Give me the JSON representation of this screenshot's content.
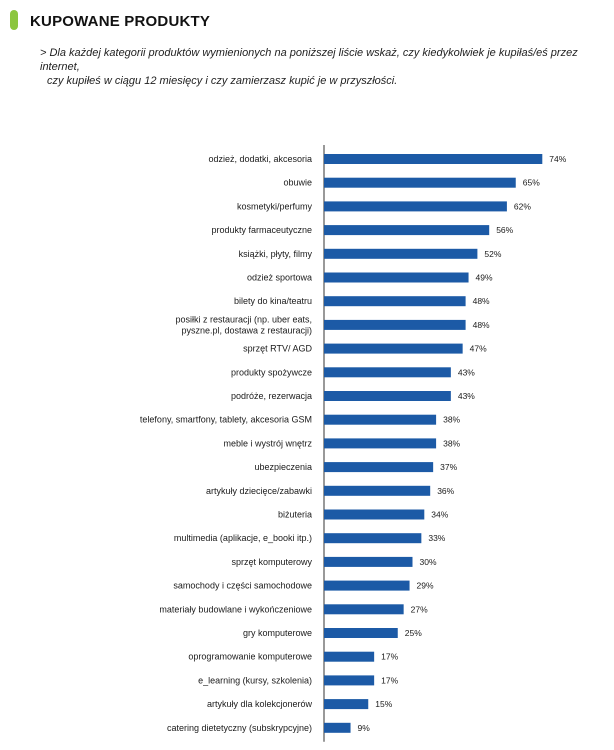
{
  "header": {
    "title": "KUPOWANE PRODUKTY",
    "subtitle_line1": "> Dla każdej kategorii produktów wymienionych na poniższej liście wskaż, czy kiedykolwiek je kupiłaś/eś przez internet,",
    "subtitle_line2": "czy kupiłeś w ciągu 12 miesięcy i czy zamierzasz kupić je w przyszłości.",
    "accent_color": "#8cc63f"
  },
  "chart_data": {
    "type": "bar",
    "orientation": "horizontal",
    "bar_color": "#1c5aa6",
    "axis_color": "#333333",
    "xlim": [
      0,
      80
    ],
    "value_suffix": "%",
    "grid": false,
    "categories": [
      [
        "odzież, dodatki, akcesoria"
      ],
      [
        "obuwie"
      ],
      [
        "kosmetyki/perfumy"
      ],
      [
        "produkty farmaceutyczne"
      ],
      [
        "książki, płyty, filmy"
      ],
      [
        "odzież sportowa"
      ],
      [
        "bilety do kina/teatru"
      ],
      [
        "posiłki z restauracji (np. uber eats,",
        "pyszne.pl, dostawa z restauracji)"
      ],
      [
        "sprzęt RTV/ AGD"
      ],
      [
        "produkty spożywcze"
      ],
      [
        "podróże, rezerwacja"
      ],
      [
        "telefony, smartfony, tablety, akcesoria GSM"
      ],
      [
        "meble i wystrój wnętrz"
      ],
      [
        "ubezpieczenia"
      ],
      [
        "artykuły dziecięce/zabawki"
      ],
      [
        "biżuteria"
      ],
      [
        "multimedia (aplikacje, e_booki itp.)"
      ],
      [
        "sprzęt komputerowy"
      ],
      [
        "samochody i części samochodowe"
      ],
      [
        "materiały budowlane i wykończeniowe"
      ],
      [
        "gry komputerowe"
      ],
      [
        "oprogramowanie komputerowe"
      ],
      [
        "e_learning (kursy, szkolenia)"
      ],
      [
        "artykuły dla kolekcjonerów"
      ],
      [
        "catering dietetyczny (subskrypcyjne)"
      ]
    ],
    "values": [
      74,
      65,
      62,
      56,
      52,
      49,
      48,
      48,
      47,
      43,
      43,
      38,
      38,
      37,
      36,
      34,
      33,
      30,
      29,
      27,
      25,
      17,
      17,
      15,
      9
    ]
  }
}
